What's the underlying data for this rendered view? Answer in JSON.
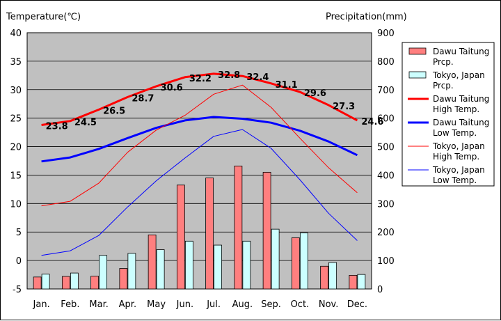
{
  "chart_data": {
    "type": "bar+line",
    "left_axis_label": "Temperature(℃)",
    "right_axis_label": "Precipitation(mm)",
    "categories": [
      "Jan.",
      "Feb.",
      "Mar.",
      "Apr.",
      "May",
      "Jun.",
      "Jul.",
      "Aug.",
      "Sep.",
      "Oct.",
      "Nov.",
      "Dec."
    ],
    "temp_ylim": [
      -5,
      40
    ],
    "temp_ticks": [
      -5,
      0,
      5,
      10,
      15,
      20,
      25,
      30,
      35,
      40
    ],
    "precip_ylim": [
      0,
      900
    ],
    "precip_ticks": [
      0,
      100,
      200,
      300,
      400,
      500,
      600,
      700,
      800,
      900
    ],
    "plot_background": "#c0c0c0",
    "bar_series": [
      {
        "name": "Dawu Taitung Prcp.",
        "color": "#ff7f7f",
        "values": [
          42,
          44,
          45,
          72,
          190,
          365,
          390,
          432,
          410,
          180,
          80,
          48
        ]
      },
      {
        "name": "Tokyo, Japan Prcp.",
        "color": "#ccffff",
        "values": [
          52,
          56,
          118,
          125,
          138,
          168,
          154,
          168,
          210,
          197,
          93,
          51
        ]
      }
    ],
    "line_series": [
      {
        "name": "Dawu Taitung High Temp.",
        "color": "#ff0000",
        "width": "thick",
        "values": [
          23.8,
          24.5,
          26.5,
          28.7,
          30.6,
          32.2,
          32.8,
          32.4,
          31.1,
          29.6,
          27.3,
          24.6
        ],
        "labels": [
          "23.8",
          "24.5",
          "26.5",
          "28.7",
          "30.6",
          "32.2",
          "32.8",
          "32.4",
          "31.1",
          "29.6",
          "27.3",
          "24.6"
        ]
      },
      {
        "name": "Dawu Taitung Low Temp.",
        "color": "#0000ff",
        "width": "thick",
        "values": [
          17.4,
          18.1,
          19.6,
          21.5,
          23.3,
          24.6,
          25.2,
          24.9,
          24.2,
          22.8,
          20.9,
          18.5
        ]
      },
      {
        "name": "Tokyo, Japan High Temp.",
        "color": "#ff0000",
        "width": "thin",
        "values": [
          9.6,
          10.4,
          13.6,
          19.0,
          22.9,
          25.5,
          29.2,
          30.8,
          26.9,
          21.5,
          16.3,
          11.9
        ]
      },
      {
        "name": "Tokyo, Japan Low Temp.",
        "color": "#0000ff",
        "width": "thin",
        "values": [
          0.9,
          1.7,
          4.4,
          9.4,
          14.0,
          18.0,
          21.8,
          23.0,
          19.7,
          14.2,
          8.3,
          3.5
        ]
      }
    ],
    "legend": [
      {
        "label": "Dawu Taitung Prcp.",
        "kind": "bar",
        "color": "#ff7f7f"
      },
      {
        "label": "Tokyo, Japan Prcp.",
        "kind": "bar",
        "color": "#ccffff"
      },
      {
        "label": "Dawu Taitung High Temp.",
        "kind": "line",
        "color": "#ff0000",
        "width": "thick"
      },
      {
        "label": "Dawu Taitung Low Temp.",
        "kind": "line",
        "color": "#0000ff",
        "width": "thick"
      },
      {
        "label": "Tokyo, Japan High Temp.",
        "kind": "line",
        "color": "#ff0000",
        "width": "thin"
      },
      {
        "label": "Tokyo, Japan Low Temp.",
        "kind": "line",
        "color": "#0000ff",
        "width": "thin"
      }
    ],
    "legend_position": "right"
  }
}
